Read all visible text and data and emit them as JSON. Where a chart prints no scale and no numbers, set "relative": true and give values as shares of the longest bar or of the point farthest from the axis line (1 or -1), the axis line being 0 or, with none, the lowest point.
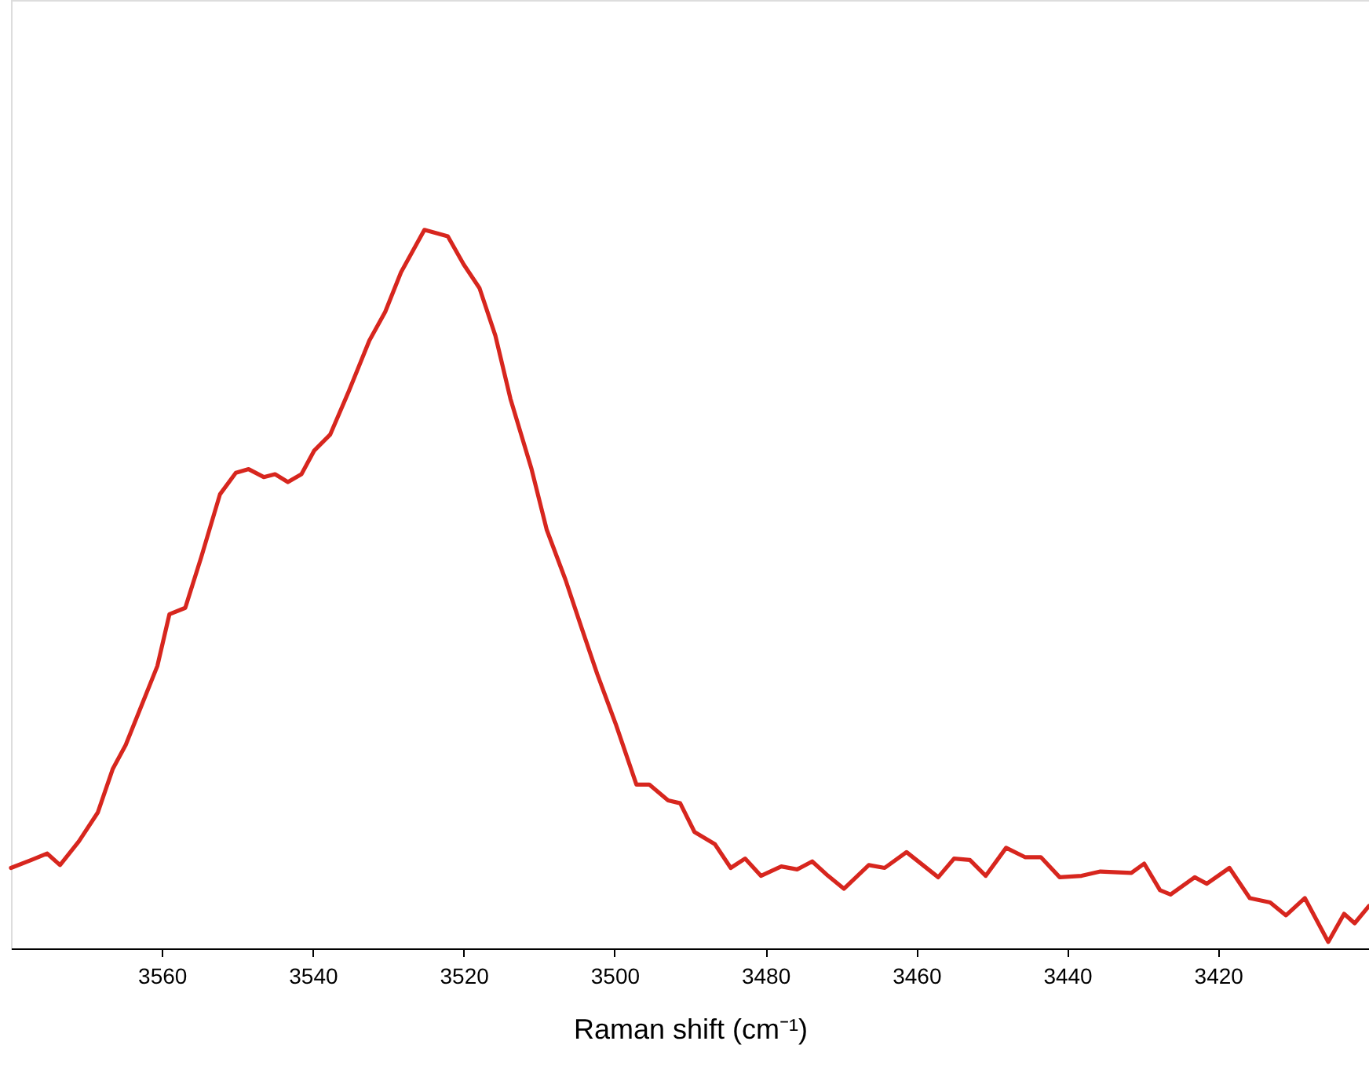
{
  "chart_data": {
    "type": "line",
    "xlabel": "Raman shift (cm⁻¹)",
    "relative": true,
    "grid": false,
    "marker": "none",
    "line_style": "solid",
    "xlim": [
      3580,
      3400
    ],
    "xticks": [
      3560,
      3540,
      3520,
      3500,
      3480,
      3460,
      3440,
      3420
    ],
    "series": [
      {
        "color": "#d7261e",
        "x": [
          3580.0,
          3577.3,
          3575.2,
          3573.5,
          3571.0,
          3568.5,
          3566.5,
          3564.8,
          3562.7,
          3560.6,
          3559.0,
          3556.9,
          3554.8,
          3552.3,
          3550.2,
          3548.5,
          3546.5,
          3545.0,
          3543.3,
          3541.5,
          3539.8,
          3537.7,
          3535.2,
          3532.5,
          3530.4,
          3528.3,
          3525.2,
          3522.1,
          3520.0,
          3517.9,
          3515.8,
          3513.8,
          3511.0,
          3509.0,
          3506.5,
          3504.4,
          3502.3,
          3499.8,
          3497.1,
          3495.4,
          3492.9,
          3491.3,
          3489.4,
          3486.7,
          3484.6,
          3482.7,
          3480.6,
          3477.9,
          3475.8,
          3473.8,
          3471.7,
          3469.6,
          3466.3,
          3464.2,
          3461.3,
          3457.1,
          3455.0,
          3452.9,
          3450.8,
          3448.1,
          3445.6,
          3443.5,
          3441.0,
          3438.1,
          3435.6,
          3431.5,
          3429.8,
          3427.7,
          3426.3,
          3423.1,
          3421.5,
          3418.5,
          3415.8,
          3413.1,
          3411.0,
          3408.5,
          3405.4,
          3403.3,
          3401.9,
          3400.0
        ],
        "values": [
          0.112,
          0.123,
          0.132,
          0.116,
          0.149,
          0.189,
          0.25,
          0.283,
          0.338,
          0.393,
          0.465,
          0.474,
          0.544,
          0.632,
          0.662,
          0.667,
          0.656,
          0.66,
          0.649,
          0.66,
          0.693,
          0.715,
          0.776,
          0.846,
          0.886,
          0.941,
          1.0,
          0.991,
          0.952,
          0.919,
          0.853,
          0.765,
          0.667,
          0.583,
          0.513,
          0.447,
          0.382,
          0.311,
          0.228,
          0.228,
          0.206,
          0.202,
          0.162,
          0.145,
          0.112,
          0.125,
          0.101,
          0.114,
          0.11,
          0.121,
          0.101,
          0.083,
          0.116,
          0.112,
          0.134,
          0.099,
          0.125,
          0.123,
          0.101,
          0.14,
          0.127,
          0.127,
          0.099,
          0.101,
          0.107,
          0.105,
          0.118,
          0.081,
          0.075,
          0.099,
          0.09,
          0.112,
          0.07,
          0.064,
          0.046,
          0.07,
          0.009,
          0.048,
          0.035,
          0.059
        ]
      }
    ]
  }
}
